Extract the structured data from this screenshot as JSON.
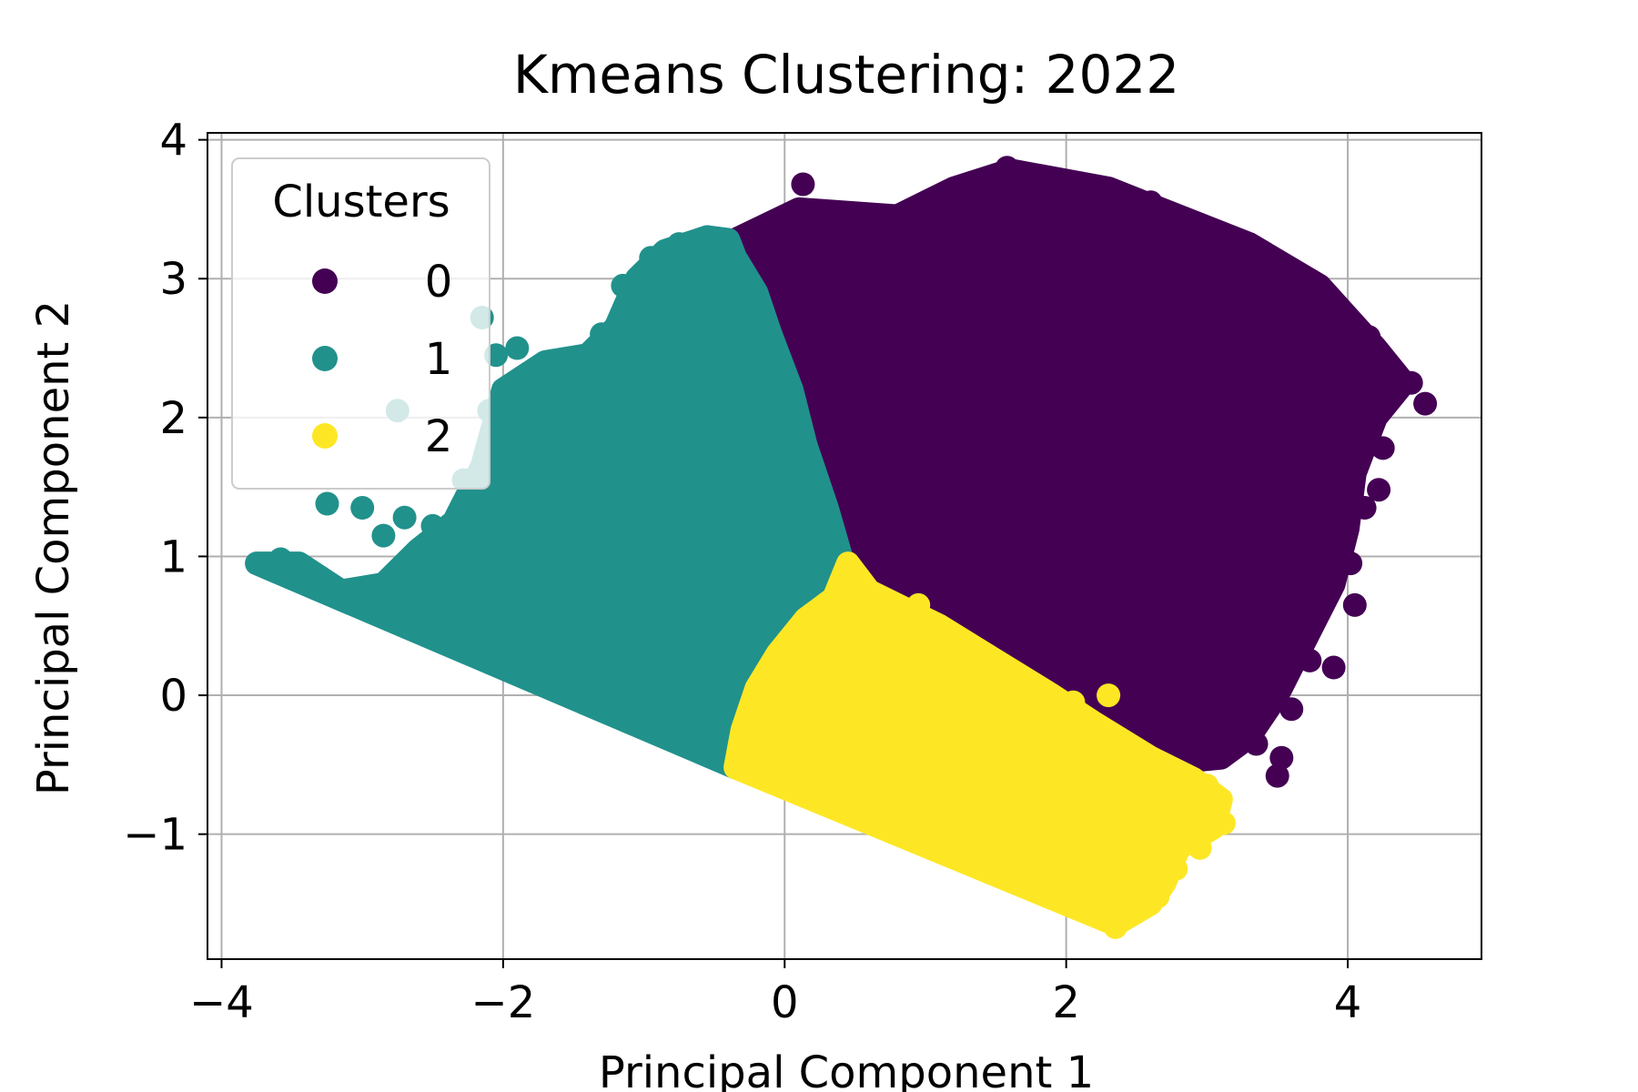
{
  "chart_data": {
    "type": "scatter",
    "title": "Kmeans Clustering: 2022",
    "xlabel": "Principal Component 1",
    "ylabel": "Principal Component 2",
    "xlim": [
      -4.1,
      4.95
    ],
    "ylim": [
      -1.9,
      4.05
    ],
    "xticks": [
      -4,
      -2,
      0,
      2,
      4
    ],
    "yticks": [
      -1,
      0,
      1,
      2,
      3,
      4
    ],
    "xtick_labels": [
      "−4",
      "−2",
      "0",
      "2",
      "4"
    ],
    "ytick_labels": [
      "−1",
      "0",
      "1",
      "2",
      "3",
      "4"
    ],
    "grid": true,
    "legend": {
      "title": "Clusters",
      "placement": "upper left"
    },
    "series": [
      {
        "name": "0",
        "color": "#440154",
        "regions": [
          [
            [
              -0.35,
              3.28
            ],
            [
              0.1,
              3.5
            ],
            [
              0.8,
              3.45
            ],
            [
              1.2,
              3.65
            ],
            [
              1.6,
              3.78
            ],
            [
              2.3,
              3.65
            ],
            [
              2.8,
              3.45
            ],
            [
              3.3,
              3.25
            ],
            [
              3.8,
              2.95
            ],
            [
              4.2,
              2.5
            ],
            [
              4.4,
              2.25
            ],
            [
              4.2,
              2.0
            ],
            [
              4.05,
              1.6
            ],
            [
              4.0,
              1.2
            ],
            [
              3.9,
              0.8
            ],
            [
              3.7,
              0.4
            ],
            [
              3.5,
              0.0
            ],
            [
              3.3,
              -0.3
            ],
            [
              3.1,
              -0.45
            ],
            [
              2.6,
              -0.5
            ],
            [
              2.2,
              -0.3
            ],
            [
              1.9,
              -0.05
            ],
            [
              1.5,
              0.2
            ],
            [
              1.1,
              0.45
            ],
            [
              0.6,
              0.7
            ],
            [
              0.4,
              1.0
            ],
            [
              0.3,
              1.35
            ],
            [
              0.15,
              1.8
            ],
            [
              0.05,
              2.2
            ],
            [
              -0.1,
              2.6
            ],
            [
              -0.2,
              2.9
            ],
            [
              -0.4,
              3.15
            ]
          ]
        ],
        "points": [
          [
            0.13,
            3.68
          ],
          [
            1.58,
            3.8
          ],
          [
            2.6,
            3.55
          ],
          [
            3.15,
            3.2
          ],
          [
            3.48,
            2.95
          ],
          [
            3.78,
            2.92
          ],
          [
            4.15,
            2.58
          ],
          [
            4.32,
            2.32
          ],
          [
            4.45,
            2.25
          ],
          [
            4.55,
            2.1
          ],
          [
            4.05,
            2.35
          ],
          [
            4.15,
            1.95
          ],
          [
            4.25,
            1.78
          ],
          [
            4.22,
            1.48
          ],
          [
            4.0,
            1.55
          ],
          [
            4.12,
            1.35
          ],
          [
            3.98,
            1.2
          ],
          [
            4.02,
            0.95
          ],
          [
            4.05,
            0.65
          ],
          [
            3.85,
            0.75
          ],
          [
            3.75,
            0.55
          ],
          [
            3.58,
            0.38
          ],
          [
            3.55,
            0.15
          ],
          [
            3.6,
            -0.1
          ],
          [
            3.53,
            -0.45
          ],
          [
            3.5,
            -0.58
          ],
          [
            3.35,
            -0.35
          ],
          [
            3.1,
            -0.32
          ],
          [
            2.9,
            -0.28
          ],
          [
            3.25,
            -0.25
          ],
          [
            3.9,
            0.2
          ],
          [
            3.73,
            0.25
          ],
          [
            3.68,
            0.45
          ],
          [
            2.2,
            0.05
          ],
          [
            2.35,
            -0.1
          ]
        ]
      },
      {
        "name": "1",
        "color": "#21918c",
        "regions": [
          [
            [
              -3.75,
              0.95
            ],
            [
              -3.45,
              0.95
            ],
            [
              -3.15,
              0.75
            ],
            [
              -2.85,
              0.8
            ],
            [
              -2.6,
              1.05
            ],
            [
              -2.35,
              1.25
            ],
            [
              -2.15,
              1.65
            ],
            [
              -2.0,
              2.2
            ],
            [
              -1.7,
              2.4
            ],
            [
              -1.4,
              2.45
            ],
            [
              -1.2,
              2.65
            ],
            [
              -1.05,
              3.0
            ],
            [
              -0.85,
              3.2
            ],
            [
              -0.55,
              3.3
            ],
            [
              -0.4,
              3.28
            ],
            [
              -0.35,
              3.15
            ],
            [
              -0.2,
              2.9
            ],
            [
              -0.1,
              2.6
            ],
            [
              0.05,
              2.2
            ],
            [
              0.15,
              1.8
            ],
            [
              0.3,
              1.35
            ],
            [
              0.4,
              1.0
            ],
            [
              0.35,
              0.7
            ],
            [
              0.15,
              0.55
            ],
            [
              -0.05,
              0.3
            ],
            [
              -0.2,
              0.05
            ],
            [
              -0.3,
              -0.25
            ],
            [
              -0.35,
              -0.52
            ]
          ]
        ],
        "points": [
          [
            -3.58,
            0.98
          ],
          [
            -3.45,
            0.92
          ],
          [
            -3.3,
            0.85
          ],
          [
            -3.25,
            1.38
          ],
          [
            -3.0,
            1.35
          ],
          [
            -2.85,
            1.15
          ],
          [
            -2.75,
            2.05
          ],
          [
            -2.7,
            1.28
          ],
          [
            -2.5,
            1.22
          ],
          [
            -2.28,
            1.55
          ],
          [
            -2.1,
            2.05
          ],
          [
            -2.05,
            2.45
          ],
          [
            -1.9,
            2.5
          ],
          [
            -2.15,
            2.72
          ],
          [
            -1.3,
            2.6
          ],
          [
            -1.15,
            2.95
          ],
          [
            -0.95,
            3.15
          ],
          [
            -0.75,
            3.25
          ],
          [
            -0.55,
            3.3
          ],
          [
            -0.6,
            3.0
          ]
        ]
      },
      {
        "name": "2",
        "color": "#fde725",
        "regions": [
          [
            [
              -0.35,
              -0.52
            ],
            [
              -0.3,
              -0.25
            ],
            [
              -0.2,
              0.05
            ],
            [
              -0.05,
              0.3
            ],
            [
              0.15,
              0.55
            ],
            [
              0.35,
              0.7
            ],
            [
              0.45,
              0.95
            ],
            [
              0.6,
              0.75
            ],
            [
              1.1,
              0.5
            ],
            [
              1.5,
              0.25
            ],
            [
              1.9,
              0.0
            ],
            [
              2.2,
              -0.2
            ],
            [
              2.6,
              -0.45
            ],
            [
              2.9,
              -0.6
            ],
            [
              3.1,
              -0.75
            ],
            [
              3.05,
              -0.95
            ],
            [
              2.8,
              -1.1
            ],
            [
              2.7,
              -1.35
            ],
            [
              2.6,
              -1.5
            ],
            [
              2.35,
              -1.65
            ]
          ]
        ],
        "points": [
          [
            0.95,
            0.65
          ],
          [
            0.0,
            0.25
          ],
          [
            -0.15,
            -0.05
          ],
          [
            2.85,
            -0.62
          ],
          [
            3.0,
            -0.65
          ],
          [
            3.08,
            -0.75
          ],
          [
            3.12,
            -0.92
          ],
          [
            2.95,
            -1.1
          ],
          [
            2.78,
            -1.25
          ],
          [
            2.65,
            -1.45
          ],
          [
            2.5,
            -1.55
          ],
          [
            2.35,
            -1.67
          ],
          [
            2.3,
            0.0
          ],
          [
            2.05,
            -0.05
          ]
        ]
      }
    ]
  }
}
